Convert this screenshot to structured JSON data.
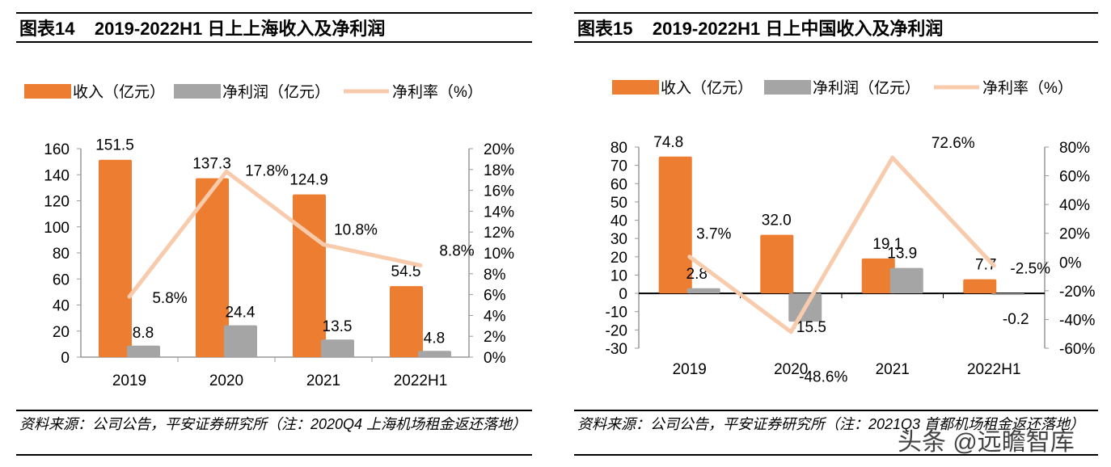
{
  "colors": {
    "revenue": "#ED7D31",
    "profit": "#A5A5A5",
    "margin": "#F8CBAD"
  },
  "watermark": "头条 @远瞻智库",
  "chart_data": [
    {
      "type": "bar+line",
      "title": "图表14    2019-2022H1 日上上海收入及净利润",
      "source": "资料来源：公司公告，平安证券研究所（注：2020Q4 上海机场租金返还落地）",
      "categories": [
        "2019",
        "2020",
        "2021",
        "2022H1"
      ],
      "series": [
        {
          "name": "收入（亿元）",
          "type": "bar",
          "axis": "left",
          "values": [
            151.5,
            137.3,
            124.9,
            54.5
          ],
          "labels": [
            "151.5",
            "137.3",
            "124.9",
            "54.5"
          ]
        },
        {
          "name": "净利润（亿元）",
          "type": "bar",
          "axis": "left",
          "values": [
            8.8,
            24.4,
            13.5,
            4.8
          ],
          "labels": [
            "8.8",
            "24.4",
            "13.5",
            "4.8"
          ]
        },
        {
          "name": "净利率（%）",
          "type": "line",
          "axis": "right",
          "values": [
            5.8,
            17.8,
            10.8,
            8.8
          ],
          "labels": [
            "5.8%",
            "17.8%",
            "10.8%",
            "8.8%"
          ]
        }
      ],
      "ylim": [
        0,
        160
      ],
      "yticks": [
        "0",
        "20",
        "40",
        "60",
        "80",
        "100",
        "120",
        "140",
        "160"
      ],
      "y2lim": [
        0,
        20
      ],
      "y2ticks": [
        "0%",
        "2%",
        "4%",
        "6%",
        "8%",
        "10%",
        "12%",
        "14%",
        "16%",
        "18%",
        "20%"
      ],
      "legend": "top"
    },
    {
      "type": "bar+line",
      "title": "图表15    2019-2022H1 日上中国收入及净利润",
      "source": "资料来源：公司公告，平安证券研究所（注：2021Q3 首都机场租金返还落地）",
      "categories": [
        "2019",
        "2020",
        "2021",
        "2022H1"
      ],
      "series": [
        {
          "name": "收入（亿元）",
          "type": "bar",
          "axis": "left",
          "values": [
            74.8,
            32.0,
            19.1,
            7.7
          ],
          "labels": [
            "74.8",
            "32.0",
            "19.1",
            "7.7"
          ]
        },
        {
          "name": "净利润（亿元）",
          "type": "bar",
          "axis": "left",
          "values": [
            2.8,
            -15.5,
            13.9,
            -0.2
          ],
          "labels": [
            "2.8",
            "-15.5",
            "13.9",
            "-0.2"
          ]
        },
        {
          "name": "净利率（%）",
          "type": "line",
          "axis": "right",
          "values": [
            3.7,
            -48.6,
            72.6,
            -2.5
          ],
          "labels": [
            "3.7%",
            "-48.6%",
            "72.6%",
            "-2.5%"
          ]
        }
      ],
      "ylim": [
        -30,
        80
      ],
      "yticks": [
        "-30",
        "-20",
        "-10",
        "0",
        "10",
        "20",
        "30",
        "40",
        "50",
        "60",
        "70",
        "80"
      ],
      "y2lim": [
        -60,
        80
      ],
      "y2ticks": [
        "-60%",
        "-40%",
        "-20%",
        "0%",
        "20%",
        "40%",
        "60%",
        "80%"
      ],
      "legend": "top"
    }
  ]
}
